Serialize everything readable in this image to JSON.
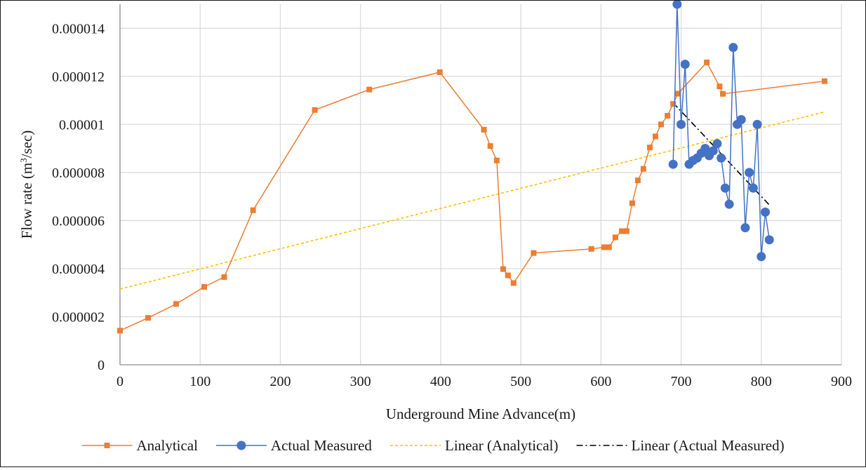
{
  "chart_data": {
    "type": "line",
    "title": "",
    "xlabel": "Underground Mine Advance(m)",
    "ylabel_prefix": "Flow rate (m",
    "ylabel_sup": "3",
    "ylabel_suffix": "/sec)",
    "xlim": [
      0,
      900
    ],
    "ylim": [
      0,
      1.5e-05
    ],
    "x_ticks": [
      0,
      100,
      200,
      300,
      400,
      500,
      600,
      700,
      800,
      900
    ],
    "y_ticks": [
      0,
      2e-06,
      4e-06,
      6e-06,
      8e-06,
      1e-05,
      1.2e-05,
      1.4e-05
    ],
    "x_tick_labels": [
      "0",
      "100",
      "200",
      "300",
      "400",
      "500",
      "600",
      "700",
      "800",
      "900"
    ],
    "y_tick_labels": [
      "0",
      "0.000002",
      "0.000004",
      "0.000006",
      "0.000008",
      "0.00001",
      "0.000012",
      "0.000014"
    ],
    "grid": true,
    "legend_position": "bottom",
    "series": [
      {
        "name": "Analytical",
        "kind": "line-marker",
        "marker": "square",
        "color": "#ED7D31",
        "x": [
          0,
          35,
          70,
          105,
          130,
          166,
          243,
          311,
          399,
          454,
          462,
          470,
          478,
          484,
          491,
          516,
          588,
          604,
          610,
          618,
          626,
          632,
          639,
          646,
          653,
          661,
          668,
          675,
          683,
          690,
          696,
          732,
          748,
          752,
          879
        ],
        "y": [
          1.42e-06,
          1.95e-06,
          2.53e-06,
          3.24e-06,
          3.65e-06,
          6.43e-06,
          1.06e-05,
          1.145e-05,
          1.217e-05,
          9.78e-06,
          9.1e-06,
          8.5e-06,
          3.98e-06,
          3.72e-06,
          3.4e-06,
          4.65e-06,
          4.82e-06,
          4.89e-06,
          4.89e-06,
          5.3e-06,
          5.56e-06,
          5.56e-06,
          6.72e-06,
          7.67e-06,
          8.15e-06,
          9.04e-06,
          9.5e-06,
          1e-05,
          1.036e-05,
          1.085e-05,
          1.128e-05,
          1.258e-05,
          1.158e-05,
          1.127e-05,
          1.18e-05
        ]
      },
      {
        "name": "Actual Measured",
        "kind": "line-marker",
        "marker": "circle",
        "color": "#4472C4",
        "x": [
          690,
          695,
          700,
          705,
          710,
          715,
          720,
          725,
          730,
          735,
          740,
          745,
          750,
          755,
          760,
          765,
          770,
          775,
          780,
          785,
          790,
          795,
          800,
          805,
          810
        ],
        "y": [
          8.34e-06,
          1.5e-05,
          1e-05,
          1.25e-05,
          8.34e-06,
          8.5e-06,
          8.6e-06,
          8.8e-06,
          9e-06,
          8.7e-06,
          8.9e-06,
          9.2e-06,
          8.6e-06,
          7.35e-06,
          6.68e-06,
          1.32e-05,
          1e-05,
          1.02e-05,
          5.7e-06,
          8e-06,
          7.35e-06,
          1e-05,
          4.5e-06,
          6.35e-06,
          5.2e-06
        ]
      },
      {
        "name": "Linear (Analytical)",
        "kind": "trend",
        "color": "#FFC000",
        "dash": "dotted",
        "x": [
          0,
          879
        ],
        "y": [
          3.15e-06,
          1.052e-05
        ]
      },
      {
        "name": "Linear (Actual Measured)",
        "kind": "trend",
        "color": "#000000",
        "dash": "dashdot",
        "x": [
          690,
          810
        ],
        "y": [
          1.09e-05,
          6.65e-06
        ]
      }
    ]
  }
}
